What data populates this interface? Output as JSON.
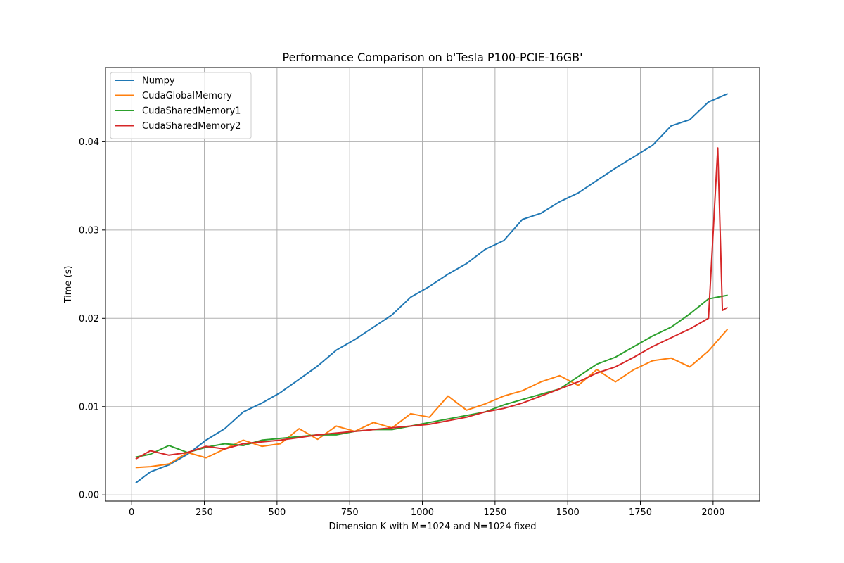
{
  "chart_data": {
    "type": "line",
    "title": "Performance Comparison on b'Tesla P100-PCIE-16GB'",
    "xlabel": "Dimension K with M=1024 and N=1024 fixed",
    "ylabel": "Time (s)",
    "xlim": [
      -90,
      2160
    ],
    "ylim": [
      -0.0007,
      0.0484
    ],
    "xticks": [
      0,
      250,
      500,
      750,
      1000,
      1250,
      1500,
      1750,
      2000
    ],
    "xtick_labels": [
      "0",
      "250",
      "500",
      "750",
      "1000",
      "1250",
      "1500",
      "1750",
      "2000"
    ],
    "yticks": [
      0.0,
      0.01,
      0.02,
      0.03,
      0.04
    ],
    "ytick_labels": [
      "0.00",
      "0.01",
      "0.02",
      "0.03",
      "0.04"
    ],
    "grid": true,
    "legend_position": "upper-left",
    "series": [
      {
        "name": "Numpy",
        "color": "#1f77b4",
        "x": [
          16,
          64,
          128,
          192,
          256,
          320,
          384,
          448,
          512,
          576,
          640,
          704,
          768,
          832,
          896,
          960,
          1024,
          1088,
          1152,
          1216,
          1280,
          1344,
          1408,
          1472,
          1536,
          1600,
          1664,
          1728,
          1792,
          1856,
          1920,
          1984,
          2048
        ],
        "y": [
          0.0014,
          0.0026,
          0.0034,
          0.0046,
          0.0062,
          0.0075,
          0.0094,
          0.0104,
          0.0116,
          0.0131,
          0.0146,
          0.0164,
          0.0176,
          0.019,
          0.0204,
          0.0224,
          0.0236,
          0.025,
          0.0262,
          0.0278,
          0.0288,
          0.0312,
          0.0319,
          0.0332,
          0.0342,
          0.0356,
          0.037,
          0.0383,
          0.0396,
          0.0418,
          0.0425,
          0.0445,
          0.0454
        ]
      },
      {
        "name": "CudaGlobalMemory",
        "color": "#ff7f0e",
        "x": [
          16,
          64,
          128,
          192,
          256,
          320,
          384,
          448,
          512,
          576,
          640,
          704,
          768,
          832,
          896,
          960,
          1024,
          1088,
          1152,
          1216,
          1280,
          1344,
          1408,
          1472,
          1536,
          1600,
          1664,
          1728,
          1792,
          1856,
          1920,
          1984,
          2048
        ],
        "y": [
          0.0031,
          0.0032,
          0.0035,
          0.0048,
          0.0042,
          0.0052,
          0.0062,
          0.0055,
          0.0058,
          0.0075,
          0.0063,
          0.0078,
          0.0072,
          0.0082,
          0.0076,
          0.0092,
          0.0088,
          0.0112,
          0.0096,
          0.0103,
          0.0112,
          0.0118,
          0.0128,
          0.0135,
          0.0124,
          0.0142,
          0.0128,
          0.0142,
          0.0152,
          0.0155,
          0.0145,
          0.0163,
          0.0187
        ]
      },
      {
        "name": "CudaSharedMemory1",
        "color": "#2ca02c",
        "x": [
          16,
          64,
          128,
          192,
          256,
          320,
          384,
          448,
          512,
          576,
          640,
          704,
          768,
          832,
          896,
          960,
          1024,
          1088,
          1152,
          1216,
          1280,
          1344,
          1408,
          1472,
          1536,
          1600,
          1664,
          1728,
          1792,
          1856,
          1920,
          1984,
          2048
        ],
        "y": [
          0.0043,
          0.0046,
          0.0056,
          0.0048,
          0.0054,
          0.0058,
          0.0056,
          0.0062,
          0.0064,
          0.0066,
          0.0068,
          0.0068,
          0.0072,
          0.0074,
          0.0074,
          0.0078,
          0.0082,
          0.0086,
          0.009,
          0.0094,
          0.0102,
          0.0108,
          0.0114,
          0.012,
          0.0134,
          0.0148,
          0.0156,
          0.0168,
          0.018,
          0.019,
          0.0205,
          0.0222,
          0.0226
        ]
      },
      {
        "name": "CudaSharedMemory2",
        "color": "#d62728",
        "x": [
          16,
          64,
          128,
          192,
          256,
          320,
          384,
          448,
          512,
          576,
          640,
          704,
          768,
          832,
          896,
          960,
          1024,
          1088,
          1152,
          1216,
          1280,
          1344,
          1408,
          1472,
          1536,
          1600,
          1664,
          1728,
          1792,
          1856,
          1920,
          1984,
          2016,
          2032,
          2048
        ],
        "y": [
          0.0041,
          0.005,
          0.0045,
          0.0048,
          0.0055,
          0.0052,
          0.0058,
          0.006,
          0.0062,
          0.0065,
          0.0068,
          0.007,
          0.0072,
          0.0074,
          0.0076,
          0.0078,
          0.008,
          0.0084,
          0.0088,
          0.0094,
          0.0098,
          0.0104,
          0.0112,
          0.012,
          0.0128,
          0.0138,
          0.0145,
          0.0156,
          0.0168,
          0.0178,
          0.0188,
          0.02,
          0.0393,
          0.0209,
          0.0212
        ]
      }
    ]
  }
}
